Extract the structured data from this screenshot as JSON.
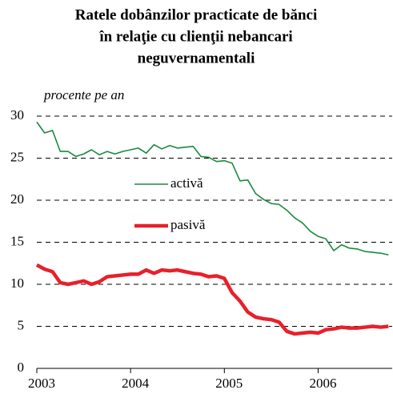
{
  "chart_data": {
    "type": "line",
    "title": [
      "Ratele dobânzilor practicate de bănci",
      "în relaţie cu clienţii nebancari",
      "neguvernamentali"
    ],
    "y_label": "procente pe an",
    "x": [
      2003,
      2003.083,
      2003.167,
      2003.25,
      2003.333,
      2003.417,
      2003.5,
      2003.583,
      2003.667,
      2003.75,
      2003.833,
      2003.917,
      2004,
      2004.083,
      2004.167,
      2004.25,
      2004.333,
      2004.417,
      2004.5,
      2004.583,
      2004.667,
      2004.75,
      2004.833,
      2004.917,
      2005,
      2005.083,
      2005.167,
      2005.25,
      2005.333,
      2005.417,
      2005.5,
      2005.583,
      2005.667,
      2005.75,
      2005.833,
      2005.917,
      2006,
      2006.083,
      2006.167,
      2006.25,
      2006.333,
      2006.417,
      2006.5,
      2006.583,
      2006.667,
      2006.75
    ],
    "series": [
      {
        "name": "activă",
        "color": "#1a8a3c",
        "width": 1.6,
        "values": [
          29.3,
          28,
          28.3,
          25.8,
          25.8,
          25.2,
          25.5,
          26,
          25.4,
          25.8,
          25.5,
          25.8,
          26,
          26.2,
          25.6,
          26.6,
          26.1,
          26.5,
          26.2,
          26.3,
          26.4,
          25.2,
          25.1,
          24.6,
          24.7,
          24.4,
          22.3,
          22.4,
          20.8,
          20.1,
          19.6,
          19.5,
          18.8,
          17.9,
          17.3,
          16.3,
          15.7,
          15.4,
          14,
          14.7,
          14.3,
          14.2,
          13.9,
          13.8,
          13.7,
          13.5
        ]
      },
      {
        "name": "pasivă",
        "color": "#e8202a",
        "width": 4.5,
        "values": [
          12.3,
          11.8,
          11.5,
          10.2,
          10,
          10.2,
          10.4,
          10,
          10.3,
          10.9,
          11,
          11.1,
          11.2,
          11.2,
          11.7,
          11.3,
          11.7,
          11.6,
          11.7,
          11.5,
          11.3,
          11.2,
          10.9,
          11,
          10.7,
          9,
          8,
          6.7,
          6.1,
          5.9,
          5.8,
          5.5,
          4.4,
          4.1,
          4.2,
          4.3,
          4.2,
          4.6,
          4.7,
          4.9,
          4.8,
          4.8,
          4.9,
          5,
          4.9,
          5
        ]
      }
    ],
    "xlim": [
      2003,
      2006.79
    ],
    "xticks": [
      2003,
      2004,
      2005,
      2006
    ],
    "ylim": [
      0,
      30
    ],
    "yticks": [
      0,
      5,
      10,
      15,
      20,
      25,
      30
    ],
    "grid": true
  }
}
